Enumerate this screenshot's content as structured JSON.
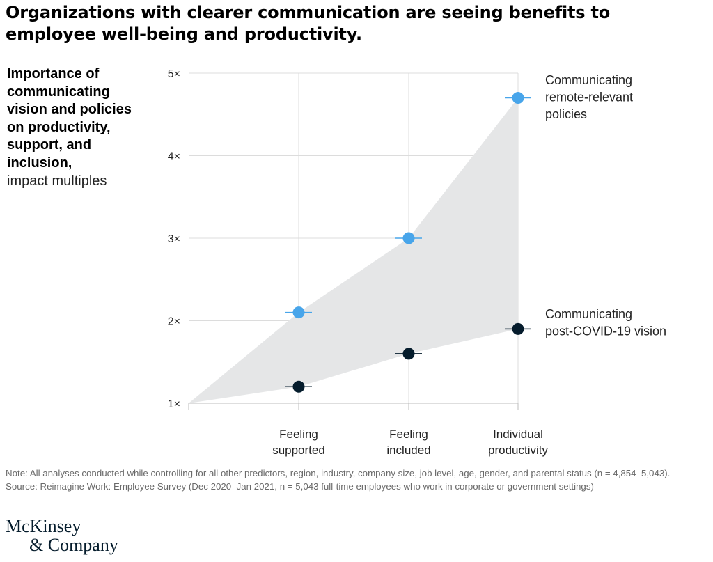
{
  "title": "Organizations with clearer communication are seeing benefits to employee well-being and productivity.",
  "left_label": {
    "bold": "Importance of communicating vision and policies on productivity, support, and inclusion,",
    "sub": "impact multiples"
  },
  "chart_data": {
    "type": "scatter",
    "categories": [
      "Feeling supported",
      "Feeling included",
      "Individual productivity"
    ],
    "category_lines": [
      [
        "Feeling",
        "supported"
      ],
      [
        "Feeling",
        "included"
      ],
      [
        "Individual",
        "productivity"
      ]
    ],
    "origin": 1,
    "ylim": [
      1,
      5
    ],
    "y_ticks": [
      1,
      2,
      3,
      4,
      5
    ],
    "y_tick_labels": [
      "1×",
      "2×",
      "3×",
      "4×",
      "5×"
    ],
    "grid": true,
    "series": [
      {
        "name": "Communicating remote-relevant policies",
        "name_lines": [
          "Communicating",
          "remote-relevant",
          "policies"
        ],
        "values": [
          2.1,
          3.0,
          4.7
        ],
        "color": "#48a5ea"
      },
      {
        "name": "Communicating post-COVID-19 vision",
        "name_lines": [
          "Communicating",
          "post-COVID-19 vision"
        ],
        "values": [
          1.2,
          1.6,
          1.9
        ],
        "color": "#051c2c"
      }
    ],
    "band_color": "#e5e6e7"
  },
  "note": "Note: All analyses conducted while controlling for all other predictors, region, industry, company size, job level, age, gender, and parental status (n = 4,854–5,043).",
  "source": "Source: Reimagine Work: Employee Survey (Dec 2020–Jan 2021, n = 5,043 full-time employees who work in corporate or government settings)",
  "logo": {
    "line1": "McKinsey",
    "line2": "& Company"
  }
}
